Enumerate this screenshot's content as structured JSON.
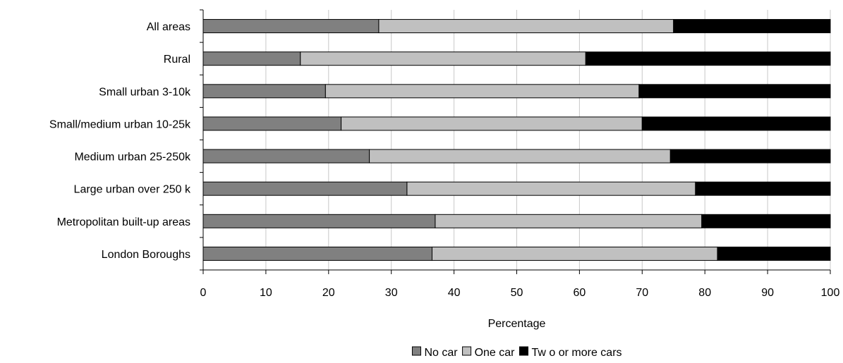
{
  "chart_data": {
    "type": "bar",
    "orientation": "horizontal",
    "stacked": true,
    "title": "",
    "xlabel": "Percentage",
    "ylabel": "",
    "xlim": [
      0,
      100
    ],
    "xticks": [
      0,
      10,
      20,
      30,
      40,
      50,
      60,
      70,
      80,
      90,
      100
    ],
    "grid": "vertical gridlines",
    "legend_position": "bottom",
    "categories": [
      "All areas",
      "Rural",
      "Small urban 3-10k",
      "Small/medium urban 10-25k",
      "Medium urban 25-250k",
      "Large urban over 250 k",
      "Metropolitan built-up areas",
      "London Boroughs"
    ],
    "series": [
      {
        "name": "No car",
        "color": "#808080",
        "values": [
          28,
          15.5,
          19.5,
          22,
          26.5,
          32.5,
          37,
          36.5
        ]
      },
      {
        "name": "One car",
        "color": "#c0c0c0",
        "values": [
          47,
          45.5,
          50,
          48,
          48,
          46,
          42.5,
          45.5
        ]
      },
      {
        "name": "Tw o or more cars",
        "color": "#000000",
        "values": [
          25,
          39,
          30.5,
          30,
          25.5,
          21.5,
          20.5,
          18
        ]
      }
    ]
  }
}
